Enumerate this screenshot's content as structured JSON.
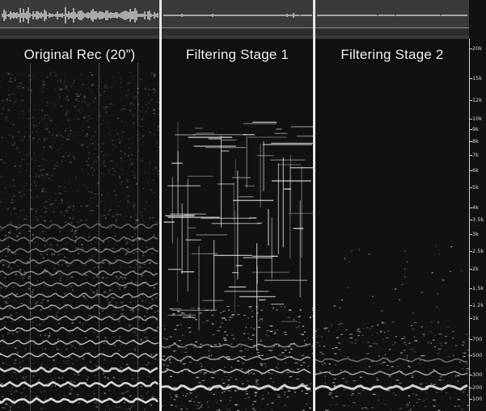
{
  "panels": [
    {
      "title": "Original Rec (20”)",
      "kind": "original"
    },
    {
      "title": "Filtering Stage 1",
      "kind": "stage1"
    },
    {
      "title": "Filtering Stage 2",
      "kind": "stage2"
    }
  ],
  "frequency_axis": {
    "labels": [
      "20k",
      "15k",
      "12k",
      "10k",
      "9k",
      "8k",
      "7k",
      "6k",
      "5k",
      "4k",
      "3.5k",
      "3k",
      "2.5k",
      "2k",
      "1.5k",
      "1.2k",
      "1k",
      "700",
      "500",
      "300",
      "200",
      "100"
    ]
  },
  "colors": {
    "background": "#111111",
    "waveform_strip": "#3a3a3a",
    "divider": "#e8e8e8",
    "energy": "#ffffff"
  }
}
